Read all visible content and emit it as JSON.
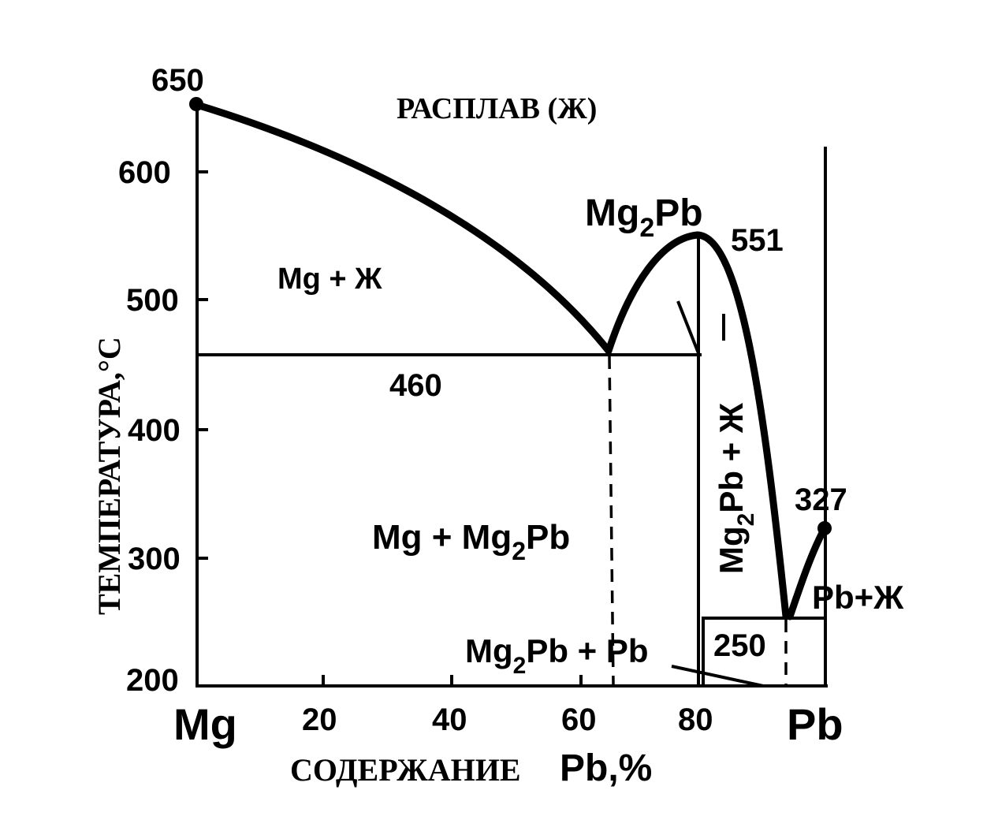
{
  "title": "РАСПЛАВ (Ж)",
  "x_axis": {
    "label_text": "СОДЕРЖАНИЕ",
    "label_element": "Pb,%",
    "left_end": "Mg",
    "right_end": "Pb",
    "ticks": [
      "20",
      "40",
      "60",
      "80"
    ]
  },
  "y_axis": {
    "label": "ТЕМПЕРАТУРА,°С",
    "ticks": [
      "200",
      "300",
      "400",
      "500",
      "600"
    ]
  },
  "points": {
    "mg_melting": "650",
    "compound_melting": "551",
    "pb_melting": "327",
    "eutectic_1": "460",
    "eutectic_2": "250"
  },
  "phase_labels": {
    "mg_liquid": "Mg + Ж",
    "mg_compound": {
      "base1": "Mg + Mg",
      "sub": "2",
      "base2": "Pb"
    },
    "compound": {
      "base1": "Mg",
      "sub": "2",
      "base2": "Pb"
    },
    "compound_liquid": {
      "base1": "Mg",
      "sub": "2",
      "base2": "Pb + Ж"
    },
    "compound_pb": {
      "base1": "Mg",
      "sub": "2",
      "base2": "Pb + Pb"
    },
    "pb_liquid": "Pb+Ж"
  }
}
